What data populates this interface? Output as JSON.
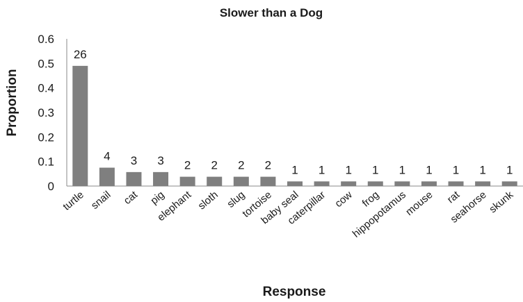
{
  "chart_data": {
    "type": "bar",
    "title": "Slower than a Dog",
    "xlabel": "Response",
    "ylabel": "Proportion",
    "ylim": [
      0,
      0.6
    ],
    "yticks": [
      "0",
      "0.1",
      "0.2",
      "0.3",
      "0.4",
      "0.5",
      "0.6"
    ],
    "grid": false,
    "bar_color": "#7f7f7f",
    "categories": [
      "turtle",
      "snail",
      "cat",
      "pig",
      "elephant",
      "sloth",
      "slug",
      "tortoise",
      "baby seal",
      "caterpillar",
      "cow",
      "frog",
      "hippopotamus",
      "mouse",
      "rat",
      "seahorse",
      "skunk"
    ],
    "values": [
      0.49,
      0.075,
      0.057,
      0.057,
      0.038,
      0.038,
      0.038,
      0.038,
      0.019,
      0.019,
      0.019,
      0.019,
      0.019,
      0.019,
      0.019,
      0.019,
      0.019
    ],
    "data_labels": [
      "26",
      "4",
      "3",
      "3",
      "2",
      "2",
      "2",
      "2",
      "1",
      "1",
      "1",
      "1",
      "1",
      "1",
      "1",
      "1",
      "1"
    ]
  }
}
